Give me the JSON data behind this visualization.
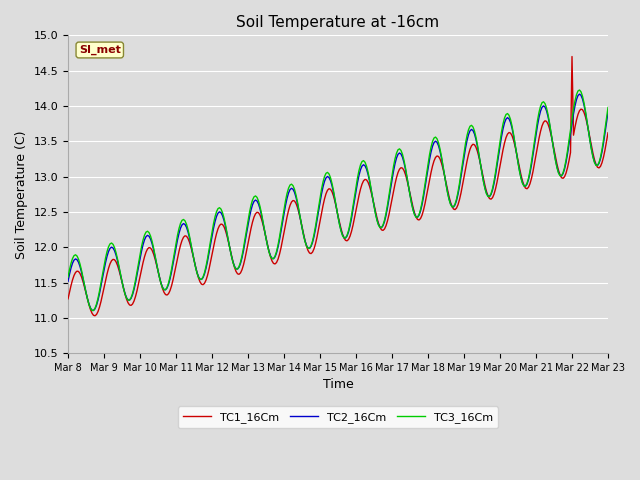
{
  "title": "Soil Temperature at -16cm",
  "xlabel": "Time",
  "ylabel": "Soil Temperature (C)",
  "ylim": [
    10.5,
    15.0
  ],
  "background_color": "#dddddd",
  "plot_bg_color": "#dddddd",
  "grid_color": "#ffffff",
  "colors": {
    "TC1": "#cc0000",
    "TC2": "#0000cc",
    "TC3": "#00cc00"
  },
  "legend_label": "SI_met",
  "legend_bg": "#ffffcc",
  "legend_border": "#aaaaaa",
  "start_day": 8,
  "end_day": 23,
  "yticks": [
    10.5,
    11.0,
    11.5,
    12.0,
    12.5,
    13.0,
    13.5,
    14.0,
    14.5,
    15.0
  ],
  "xtick_days": [
    8,
    9,
    10,
    11,
    12,
    13,
    14,
    15,
    16,
    17,
    18,
    19,
    20,
    21,
    22,
    23
  ],
  "figsize": [
    6.4,
    4.8
  ],
  "dpi": 100
}
